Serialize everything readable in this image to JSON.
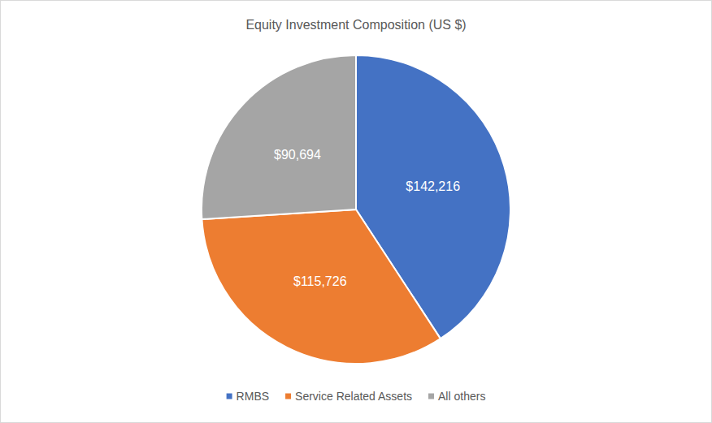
{
  "chart_data": {
    "type": "pie",
    "title": "Equity Investment Composition (US $)",
    "categories": [
      "RMBS",
      "Service Related Assets",
      "All others"
    ],
    "values": [
      142216,
      115726,
      90694
    ],
    "value_labels": [
      "$142,216",
      "$115,726",
      "$90,694"
    ],
    "colors": [
      "#4472c4",
      "#ed7d31",
      "#a5a5a5"
    ],
    "data_labels": true,
    "legend": "bottom"
  }
}
